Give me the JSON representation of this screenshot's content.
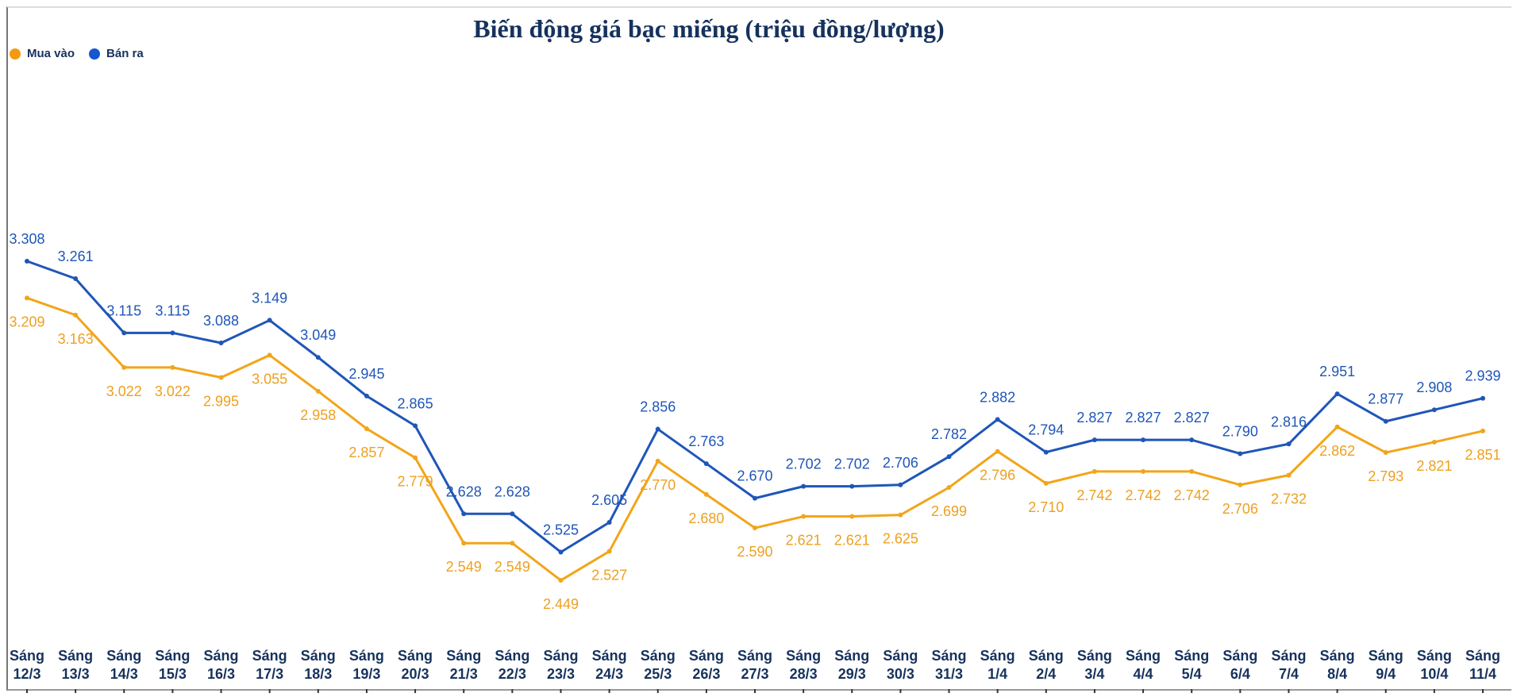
{
  "chart_data": {
    "type": "line",
    "title": "Biến động giá bạc miếng (triệu đồng/lượng)",
    "xlabel": "",
    "ylabel": "",
    "ylim": [
      2.135,
      4.011
    ],
    "grid": false,
    "legend_position": "top-left",
    "categories": [
      "Sáng 12/3",
      "Sáng 13/3",
      "Sáng 14/3",
      "Sáng 15/3",
      "Sáng 16/3",
      "Sáng 17/3",
      "Sáng 18/3",
      "Sáng 19/3",
      "Sáng 20/3",
      "Sáng 21/3",
      "Sáng 22/3",
      "Sáng 23/3",
      "Sáng 24/3",
      "Sáng 25/3",
      "Sáng 26/3",
      "Sáng 27/3",
      "Sáng 28/3",
      "Sáng 29/3",
      "Sáng 30/3",
      "Sáng 31/3",
      "Sáng 1/4",
      "Sáng 2/4",
      "Sáng 3/4",
      "Sáng 4/4",
      "Sáng 5/4",
      "Sáng 6/4",
      "Sáng 7/4",
      "Sáng 8/4",
      "Sáng 9/4",
      "Sáng 10/4",
      "Sáng 11/4"
    ],
    "series": [
      {
        "name": "Mua vào",
        "color": "#f2a51a",
        "label_color": "#eea020",
        "values": [
          3.209,
          3.163,
          3.022,
          3.022,
          2.995,
          3.055,
          2.958,
          2.857,
          2.779,
          2.549,
          2.549,
          2.449,
          2.527,
          2.77,
          2.68,
          2.59,
          2.621,
          2.621,
          2.625,
          2.699,
          2.796,
          2.71,
          2.742,
          2.742,
          2.742,
          2.706,
          2.732,
          2.862,
          2.793,
          2.821,
          2.851
        ]
      },
      {
        "name": "Bán ra",
        "color": "#1f56b8",
        "label_color": "#1f56b8",
        "values": [
          3.308,
          3.261,
          3.115,
          3.115,
          3.088,
          3.149,
          3.049,
          2.945,
          2.865,
          2.628,
          2.628,
          2.525,
          2.605,
          2.856,
          2.763,
          2.67,
          2.702,
          2.702,
          2.706,
          2.782,
          2.882,
          2.794,
          2.827,
          2.827,
          2.827,
          2.79,
          2.816,
          2.951,
          2.877,
          2.908,
          2.939
        ]
      }
    ]
  }
}
